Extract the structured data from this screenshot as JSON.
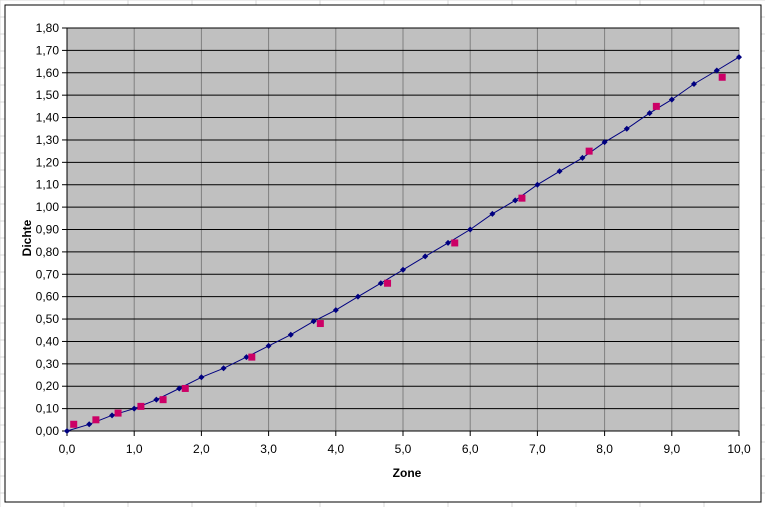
{
  "chart_data": {
    "type": "scatter",
    "xlabel": "Zone",
    "ylabel": "Dichte",
    "xlim": [
      0,
      10
    ],
    "ylim": [
      0,
      1.8
    ],
    "x_ticks": [
      "0,0",
      "1,0",
      "2,0",
      "3,0",
      "4,0",
      "5,0",
      "6,0",
      "7,0",
      "8,0",
      "9,0",
      "10,0"
    ],
    "y_ticks": [
      "0,00",
      "0,10",
      "0,20",
      "0,30",
      "0,40",
      "0,50",
      "0,60",
      "0,70",
      "0,80",
      "0,90",
      "1,00",
      "1,10",
      "1,20",
      "1,30",
      "1,40",
      "1,50",
      "1,60",
      "1,70",
      "1,80"
    ],
    "grid": true,
    "legend": "none",
    "colors": {
      "plot_background": "#c0c0c0",
      "series_line": "#000080",
      "curve_markers": "#000080",
      "measured_markers": "#cc0066"
    },
    "series": [
      {
        "marker": "diamond",
        "line": true,
        "x": [
          0,
          0.33,
          0.67,
          1.0,
          1.33,
          1.67,
          2.0,
          2.33,
          2.67,
          3.0,
          3.33,
          3.67,
          4.0,
          4.33,
          4.67,
          5.0,
          5.33,
          5.67,
          6.0,
          6.33,
          6.67,
          7.0,
          7.33,
          7.67,
          8.0,
          8.33,
          8.67,
          9.0,
          9.33,
          9.67,
          10.0
        ],
        "y": [
          0.0,
          0.03,
          0.07,
          0.1,
          0.14,
          0.19,
          0.24,
          0.28,
          0.33,
          0.38,
          0.43,
          0.49,
          0.54,
          0.6,
          0.66,
          0.72,
          0.78,
          0.84,
          0.9,
          0.97,
          1.03,
          1.1,
          1.16,
          1.22,
          1.29,
          1.35,
          1.42,
          1.48,
          1.55,
          1.61,
          1.67
        ]
      },
      {
        "marker": "square",
        "line": false,
        "x": [
          0.1,
          0.43,
          0.76,
          1.1,
          1.43,
          1.76,
          2.75,
          3.77,
          4.77,
          5.77,
          6.77,
          7.77,
          8.77,
          9.75
        ],
        "y": [
          0.03,
          0.05,
          0.08,
          0.11,
          0.14,
          0.19,
          0.33,
          0.48,
          0.66,
          0.84,
          1.04,
          1.25,
          1.45,
          1.58
        ]
      }
    ]
  }
}
